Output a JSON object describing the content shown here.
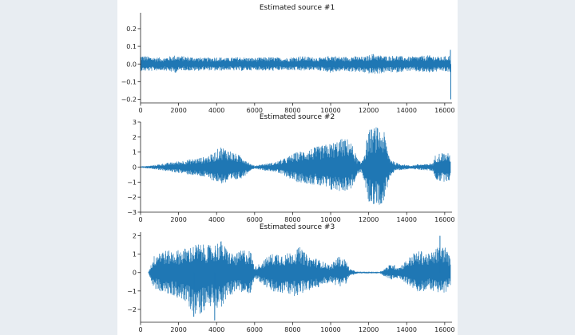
{
  "chart_data": [
    {
      "type": "line",
      "title": "Estimated source #1",
      "xlabel": "",
      "ylabel": "",
      "xlim": [
        0,
        16384
      ],
      "ylim": [
        -0.22,
        0.29
      ],
      "xticks": [
        0,
        2000,
        4000,
        6000,
        8000,
        10000,
        12000,
        14000,
        16000
      ],
      "xtick_labels": [
        "0",
        "2000",
        "4000",
        "6000",
        "8000",
        "10000",
        "12000",
        "14000",
        "16000"
      ],
      "yticks": [
        0.2,
        0.1,
        0.0,
        -0.1,
        -0.2
      ],
      "ytick_labels": [
        "0.2",
        "0.1",
        "0.0",
        "−0.1",
        "−0.2"
      ],
      "grid": false,
      "color": "#1f77b4",
      "series": [
        {
          "kind": "envelope",
          "x": [
            0,
            600,
            1200,
            1800,
            2200,
            2800,
            3400,
            4000,
            4600,
            5200,
            6000,
            6800,
            7600,
            8400,
            9000,
            9600,
            10000,
            10600,
            11200,
            11800,
            12200,
            12600,
            13000,
            13400,
            14000,
            14600,
            15200,
            15800,
            16300
          ],
          "upper": [
            0.05,
            0.04,
            0.035,
            0.05,
            0.045,
            0.04,
            0.035,
            0.04,
            0.035,
            0.04,
            0.035,
            0.04,
            0.035,
            0.045,
            0.04,
            0.035,
            0.05,
            0.04,
            0.045,
            0.04,
            0.06,
            0.05,
            0.045,
            0.05,
            0.04,
            0.045,
            0.05,
            0.04,
            0.05
          ],
          "lower": [
            -0.04,
            -0.04,
            -0.035,
            -0.05,
            -0.035,
            -0.04,
            -0.035,
            -0.04,
            -0.035,
            -0.04,
            -0.035,
            -0.04,
            -0.035,
            -0.04,
            -0.035,
            -0.04,
            -0.05,
            -0.04,
            -0.045,
            -0.05,
            -0.06,
            -0.055,
            -0.045,
            -0.05,
            -0.04,
            -0.045,
            -0.05,
            -0.04,
            -0.05
          ],
          "spikes": [
            {
              "x": 16300,
              "y": 0.08
            },
            {
              "x": 16320,
              "y": -0.2
            }
          ]
        }
      ]
    },
    {
      "type": "line",
      "title": "Estimated source #2",
      "xlabel": "",
      "ylabel": "",
      "xlim": [
        0,
        16384
      ],
      "ylim": [
        -3,
        3
      ],
      "xticks": [
        0,
        2000,
        4000,
        6000,
        8000,
        10000,
        12000,
        14000,
        16000
      ],
      "xtick_labels": [
        "0",
        "2000",
        "4000",
        "6000",
        "8000",
        "10000",
        "12000",
        "14000",
        "16000"
      ],
      "yticks": [
        3,
        2,
        1,
        0,
        -1,
        -2,
        -3
      ],
      "ytick_labels": [
        "3",
        "2",
        "1",
        "0",
        "−1",
        "−2",
        "−3"
      ],
      "grid": false,
      "color": "#1f77b4",
      "series": [
        {
          "kind": "envelope",
          "x": [
            0,
            500,
            1000,
            1500,
            2000,
            2500,
            3000,
            3400,
            3800,
            4200,
            4600,
            5000,
            5400,
            5800,
            6000,
            6400,
            7000,
            7600,
            8200,
            8800,
            9400,
            10000,
            10600,
            11000,
            11200,
            11400,
            11600,
            11800,
            12000,
            12400,
            12800,
            13100,
            13400,
            13800,
            14200,
            14600,
            15000,
            15400,
            15500,
            15800,
            16300
          ],
          "upper": [
            0.05,
            0.1,
            0.2,
            0.3,
            0.4,
            0.5,
            0.6,
            0.7,
            0.9,
            1.4,
            1.2,
            0.9,
            0.7,
            0.2,
            0.1,
            0.2,
            0.3,
            0.6,
            1.0,
            1.2,
            1.4,
            1.6,
            1.9,
            1.9,
            1.3,
            0.6,
            0.3,
            1.2,
            2.5,
            2.7,
            2.4,
            0.7,
            0.3,
            0.2,
            0.1,
            0.2,
            0.2,
            0.3,
            0.8,
            1.0,
            0.9
          ],
          "lower": [
            -0.05,
            -0.1,
            -0.2,
            -0.3,
            -0.4,
            -0.5,
            -0.6,
            -0.7,
            -0.9,
            -1.1,
            -1.1,
            -0.9,
            -0.7,
            -0.2,
            -0.1,
            -0.2,
            -0.3,
            -0.6,
            -1.0,
            -1.1,
            -1.3,
            -1.6,
            -1.6,
            -1.6,
            -1.2,
            -0.6,
            -0.3,
            -1.2,
            -2.4,
            -2.6,
            -2.4,
            -0.7,
            -0.3,
            -0.2,
            -0.1,
            -0.2,
            -0.2,
            -0.3,
            -0.8,
            -1.0,
            -0.9
          ]
        }
      ]
    },
    {
      "type": "line",
      "title": "Estimated source #3",
      "xlabel": "",
      "ylabel": "",
      "xlim": [
        0,
        16384
      ],
      "ylim": [
        -2.7,
        2.2
      ],
      "xticks": [
        0,
        2000,
        4000,
        6000,
        8000,
        10000,
        12000,
        14000,
        16000
      ],
      "xtick_labels": [
        "0",
        "2000",
        "4000",
        "6000",
        "8000",
        "10000",
        "12000",
        "14000",
        "16000"
      ],
      "yticks": [
        2,
        1,
        0,
        -1,
        -2
      ],
      "ytick_labels": [
        "2",
        "1",
        "0",
        "−1",
        "−2"
      ],
      "grid": false,
      "color": "#1f77b4",
      "series": [
        {
          "kind": "envelope",
          "x": [
            0,
            400,
            700,
            1000,
            1400,
            1800,
            2200,
            2600,
            3000,
            3400,
            3800,
            4200,
            4600,
            5000,
            5400,
            5800,
            6000,
            6400,
            6800,
            7200,
            7600,
            8000,
            8400,
            8800,
            9200,
            9600,
            10000,
            10400,
            10800,
            11000,
            11400,
            11800,
            12200,
            12600,
            12800,
            13200,
            13600,
            14000,
            14400,
            14800,
            15200,
            15600,
            16000,
            16300
          ],
          "upper": [
            0.0,
            0.0,
            0.9,
            1.3,
            1.2,
            1.2,
            1.3,
            1.4,
            1.6,
            1.5,
            1.5,
            1.8,
            1.2,
            1.0,
            1.3,
            1.2,
            0.3,
            0.6,
            1.0,
            1.1,
            1.0,
            1.2,
            1.4,
            0.9,
            0.8,
            0.6,
            0.4,
            0.9,
            0.7,
            0.2,
            0.05,
            0.05,
            0.05,
            0.05,
            0.2,
            0.5,
            0.3,
            0.7,
            1.1,
            1.2,
            1.0,
            1.4,
            1.5,
            0.8
          ],
          "lower": [
            0.0,
            0.0,
            -0.9,
            -1.0,
            -1.2,
            -1.3,
            -1.5,
            -2.0,
            -2.4,
            -2.0,
            -1.8,
            -2.0,
            -1.4,
            -1.0,
            -1.2,
            -1.1,
            -0.3,
            -0.6,
            -1.0,
            -1.2,
            -1.1,
            -1.3,
            -1.2,
            -1.0,
            -0.9,
            -0.7,
            -0.5,
            -0.8,
            -0.6,
            -0.2,
            -0.05,
            -0.05,
            -0.05,
            -0.05,
            -0.2,
            -0.4,
            -0.3,
            -0.6,
            -1.0,
            -1.1,
            -0.9,
            -1.1,
            -1.2,
            -0.8
          ],
          "spikes": [
            {
              "x": 2800,
              "y": -2.4
            },
            {
              "x": 3900,
              "y": -2.6
            },
            {
              "x": 15750,
              "y": 2.0
            }
          ]
        }
      ]
    }
  ]
}
